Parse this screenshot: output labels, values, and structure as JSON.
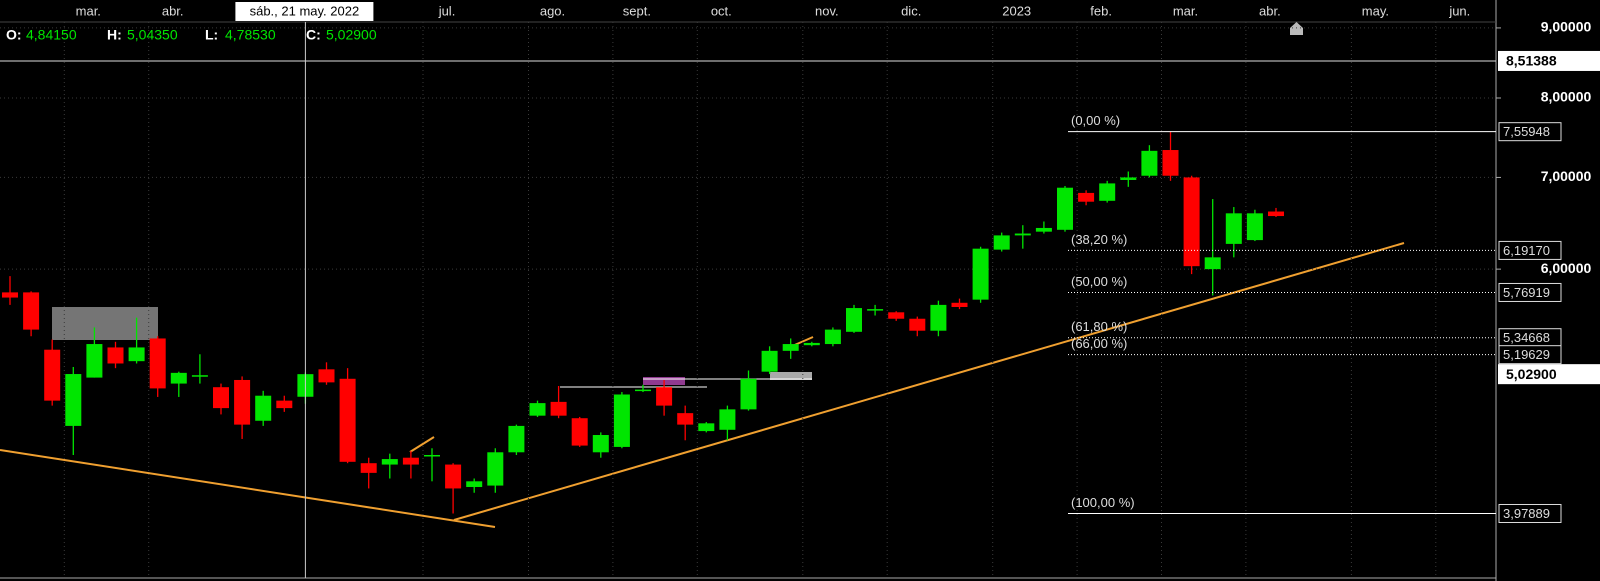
{
  "chart_data": {
    "type": "candlestick",
    "categories": [
      null,
      null,
      null,
      "mar.",
      null,
      null,
      null,
      "abr.",
      null,
      null,
      null,
      null,
      null,
      null,
      null,
      null,
      null,
      null,
      null,
      null,
      "jul.",
      null,
      null,
      null,
      null,
      "ago.",
      null,
      null,
      null,
      "sept.",
      null,
      null,
      null,
      "oct.",
      null,
      null,
      null,
      null,
      "nov.",
      null,
      null,
      null,
      "dic.",
      null,
      null,
      null,
      null,
      "2023",
      null,
      null,
      null,
      "feb.",
      null,
      null,
      null,
      "mar.",
      null,
      null,
      null,
      "abr.",
      null,
      null,
      null,
      null,
      "may.",
      null,
      null,
      null,
      "jun.",
      null,
      null
    ],
    "open": [
      5.77,
      5.77,
      5.24,
      4.61,
      5.0,
      5.26,
      5.14,
      5.34,
      4.95,
      5.01,
      4.92,
      4.98,
      4.65,
      4.81,
      4.8415,
      5.07,
      4.99,
      4.33,
      4.32,
      4.37,
      4.38,
      4.32,
      4.16,
      4.17,
      4.41,
      4.69,
      4.8,
      4.67,
      4.41,
      4.45,
      4.89,
      4.92,
      4.71,
      4.57,
      4.58,
      4.74,
      5.05,
      5.23,
      5.28,
      5.29,
      5.4,
      5.6,
      5.58,
      5.52,
      5.41,
      5.67,
      5.7,
      6.2,
      6.35,
      6.39,
      6.41,
      6.82,
      6.73,
      6.97,
      7.02,
      7.33,
      7.0,
      6.0,
      6.26,
      6.3,
      6.61,
      null,
      null,
      null,
      null,
      null,
      null,
      null,
      null,
      null,
      null
    ],
    "high": [
      5.93,
      5.78,
      5.33,
      5.09,
      5.44,
      5.31,
      5.53,
      5.36,
      5.05,
      5.2,
      4.95,
      5.01,
      4.89,
      4.85,
      5.0435,
      5.13,
      5.08,
      4.37,
      4.4,
      4.42,
      4.44,
      4.33,
      4.22,
      4.44,
      4.62,
      4.81,
      4.93,
      4.68,
      4.56,
      4.88,
      4.94,
      4.98,
      4.77,
      4.64,
      4.77,
      5.06,
      5.27,
      5.34,
      5.31,
      5.44,
      5.65,
      5.65,
      5.59,
      5.54,
      5.69,
      5.71,
      6.23,
      6.38,
      6.46,
      6.5,
      6.9,
      6.85,
      6.96,
      7.07,
      7.39,
      7.55948,
      7.02,
      6.75,
      6.66,
      6.63,
      6.65,
      null,
      null,
      null,
      null,
      null,
      null,
      null,
      null,
      null,
      null
    ],
    "low": [
      5.65,
      5.36,
      4.77,
      4.39,
      5.0,
      5.08,
      5.12,
      4.84,
      4.84,
      4.95,
      4.7,
      4.51,
      4.61,
      4.72,
      4.7853,
      4.94,
      4.33,
      4.15,
      4.22,
      4.22,
      4.2,
      3.97889,
      4.12,
      4.12,
      4.39,
      4.68,
      4.67,
      4.45,
      4.37,
      4.44,
      4.88,
      4.69,
      4.5,
      4.56,
      4.5,
      4.73,
      5.03,
      5.16,
      5.27,
      5.27,
      5.39,
      5.55,
      5.5,
      5.36,
      5.36,
      5.61,
      5.67,
      6.18,
      6.21,
      6.37,
      6.39,
      6.68,
      6.71,
      6.89,
      7.0,
      6.96,
      5.95,
      5.74,
      6.12,
      6.29,
      6.55,
      null,
      null,
      null,
      null,
      null,
      null,
      null,
      null,
      null,
      null
    ],
    "close": [
      5.72,
      5.42,
      4.81,
      5.03,
      5.29,
      5.12,
      5.26,
      4.91,
      5.04,
      5.02,
      4.75,
      4.62,
      4.85,
      4.75,
      5.029,
      4.96,
      4.34,
      4.26,
      4.36,
      4.32,
      4.39,
      4.15,
      4.2,
      4.41,
      4.61,
      4.79,
      4.69,
      4.46,
      4.54,
      4.86,
      4.9,
      4.77,
      4.62,
      4.63,
      4.74,
      4.99,
      5.23,
      5.29,
      5.3,
      5.42,
      5.62,
      5.61,
      5.52,
      5.41,
      5.65,
      5.63,
      6.21,
      6.35,
      6.37,
      6.43,
      6.88,
      6.72,
      6.93,
      7.0,
      7.32,
      7.02,
      6.03,
      6.12,
      6.59,
      6.59,
      6.56,
      null,
      null,
      null,
      null,
      null,
      null,
      null,
      null,
      null,
      null
    ],
    "up_color": "#00e600",
    "down_color": "#ff0000",
    "log_scale": true,
    "grid": true,
    "ylim": [
      3.57,
      9.09
    ],
    "yticks": [
      {
        "value": 9,
        "label": "9,00000"
      },
      {
        "value": 8,
        "label": "8,00000"
      },
      {
        "value": 7,
        "label": "7,00000"
      },
      {
        "value": 6,
        "label": "6,00000"
      }
    ],
    "hline": {
      "value": 8.51388,
      "label": "8,51388"
    },
    "crosshair": {
      "category": 14,
      "label": "sáb., 21 may. 2022",
      "price": 5.029,
      "price_label": "5,02900",
      "keys": [
        "O:",
        "H:",
        "L:",
        "C:"
      ],
      "value_labels": [
        "4,84150",
        "5,04350",
        "4,78530",
        "5,02900"
      ]
    },
    "fibonacci": [
      {
        "label": "(0,00 %)",
        "value": 7.55948,
        "value_label": "7,55948"
      },
      {
        "label": "(38,20 %)",
        "value": 6.1917,
        "value_label": "6,19170"
      },
      {
        "label": "(50,00 %)",
        "value": 5.76919,
        "value_label": "5,76919"
      },
      {
        "label": "(61,80 %)",
        "value": 5.34668,
        "value_label": "5,34668"
      },
      {
        "label": "(66,00 %)",
        "value": 5.19629,
        "value_label": "5,19629"
      },
      {
        "label": "(100,00 %)",
        "value": 3.97889,
        "value_label": "3,97889"
      }
    ]
  }
}
